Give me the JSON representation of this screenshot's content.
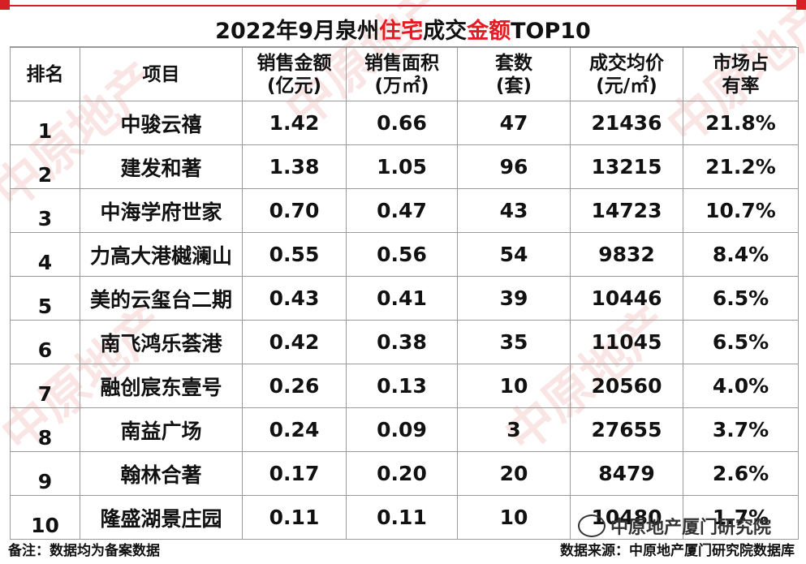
{
  "title_parts": [
    "2022年9月泉州",
    "住宅",
    "成交",
    "金额",
    "TOP10"
  ],
  "accent_color": "#e31b23",
  "headers": {
    "rank": "排名",
    "project": "项目",
    "amount": [
      "销售金额",
      "(亿元)"
    ],
    "area": [
      "销售面积",
      "(万㎡)"
    ],
    "units": [
      "套数",
      "(套)"
    ],
    "price": [
      "成交均价",
      "(元/㎡)"
    ],
    "share": [
      "市场占",
      "有率"
    ]
  },
  "rows": [
    {
      "rank": "1",
      "project": "中骏云禧",
      "amount": "1.42",
      "area": "0.66",
      "units": "47",
      "price": "21436",
      "share": "21.8%"
    },
    {
      "rank": "2",
      "project": "建发和著",
      "amount": "1.38",
      "area": "1.05",
      "units": "96",
      "price": "13215",
      "share": "21.2%"
    },
    {
      "rank": "3",
      "project": "中海学府世家",
      "amount": "0.70",
      "area": "0.47",
      "units": "43",
      "price": "14723",
      "share": "10.7%"
    },
    {
      "rank": "4",
      "project": "力高大港樾澜山",
      "amount": "0.55",
      "area": "0.56",
      "units": "54",
      "price": "9832",
      "share": "8.4%"
    },
    {
      "rank": "5",
      "project": "美的云玺台二期",
      "amount": "0.43",
      "area": "0.41",
      "units": "39",
      "price": "10446",
      "share": "6.5%"
    },
    {
      "rank": "6",
      "project": "南飞鸿乐荟港",
      "amount": "0.42",
      "area": "0.38",
      "units": "35",
      "price": "11045",
      "share": "6.5%"
    },
    {
      "rank": "7",
      "project": "融创宸东壹号",
      "amount": "0.26",
      "area": "0.13",
      "units": "10",
      "price": "20560",
      "share": "4.0%"
    },
    {
      "rank": "8",
      "project": "南益广场",
      "amount": "0.24",
      "area": "0.09",
      "units": "3",
      "price": "27655",
      "share": "3.7%"
    },
    {
      "rank": "9",
      "project": "翰林合著",
      "amount": "0.17",
      "area": "0.20",
      "units": "20",
      "price": "8479",
      "share": "2.6%"
    },
    {
      "rank": "10",
      "project": "隆盛湖景庄园",
      "amount": "0.11",
      "area": "0.11",
      "units": "10",
      "price": "10480",
      "share": "1.7%"
    }
  ],
  "footer_note": "备注：数据均为备案数据",
  "footer_source": "数据来源：中原地产厦门研究院数据库",
  "wechat_label": "中原地产厦门研究院",
  "watermark": "中原地产"
}
